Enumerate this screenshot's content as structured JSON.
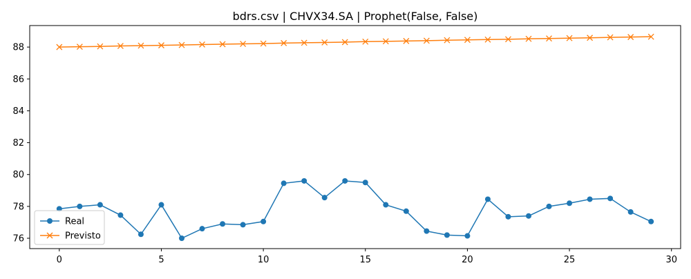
{
  "chart_data": {
    "type": "line",
    "title": "bdrs.csv | CHVX34.SA | Prophet(False, False)",
    "xlabel": "",
    "ylabel": "",
    "xlim": [
      -1.45,
      30.45
    ],
    "ylim": [
      75.35,
      89.35
    ],
    "xticks": [
      0,
      5,
      10,
      15,
      20,
      25,
      30
    ],
    "yticks": [
      76,
      78,
      80,
      82,
      84,
      86,
      88
    ],
    "grid": false,
    "legend_position": "lower-left",
    "x": [
      0,
      1,
      2,
      3,
      4,
      5,
      6,
      7,
      8,
      9,
      10,
      11,
      12,
      13,
      14,
      15,
      16,
      17,
      18,
      19,
      20,
      21,
      22,
      23,
      24,
      25,
      26,
      27,
      28,
      29
    ],
    "series": [
      {
        "name": "Real",
        "color": "#1f77b4",
        "marker": "circle",
        "values": [
          77.85,
          78.0,
          78.1,
          77.45,
          76.25,
          78.1,
          76.0,
          76.6,
          76.9,
          76.85,
          77.05,
          79.45,
          79.6,
          78.55,
          79.6,
          79.5,
          78.1,
          77.7,
          76.45,
          76.2,
          76.15,
          78.45,
          77.35,
          77.4,
          78.0,
          78.2,
          78.45,
          78.5,
          77.65,
          77.05
        ]
      },
      {
        "name": "Previsto",
        "color": "#ff7f0e",
        "marker": "x",
        "values": [
          88.0,
          88.02,
          88.04,
          88.07,
          88.09,
          88.11,
          88.13,
          88.16,
          88.18,
          88.2,
          88.22,
          88.25,
          88.27,
          88.29,
          88.31,
          88.34,
          88.36,
          88.38,
          88.4,
          88.43,
          88.45,
          88.47,
          88.49,
          88.52,
          88.54,
          88.56,
          88.58,
          88.61,
          88.63,
          88.65
        ]
      }
    ]
  }
}
